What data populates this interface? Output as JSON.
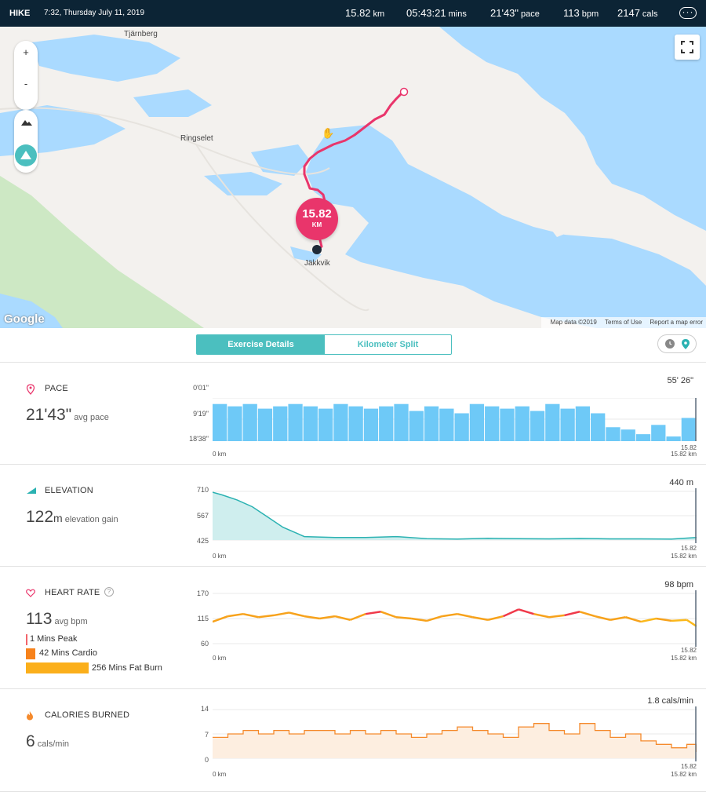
{
  "header": {
    "activity_type": "HIKE",
    "datetime": "7:32, Thursday July 11, 2019",
    "stats": [
      {
        "value": "15.82",
        "unit": "km"
      },
      {
        "value": "05:43:21",
        "unit": "mins"
      },
      {
        "value": "21'43\"",
        "unit": "pace"
      },
      {
        "value": "113",
        "unit": "bpm"
      },
      {
        "value": "2147",
        "unit": "cals"
      }
    ],
    "more_label": "···"
  },
  "map": {
    "zoom_in": "+",
    "zoom_out": "-",
    "places": {
      "p1": "Tjärnberg",
      "p2": "Ringselet",
      "p3": "Jäkkvik"
    },
    "distance_badge": {
      "value": "15.82",
      "unit": "KM"
    },
    "google_logo": "Google",
    "attribution": {
      "data": "Map data ©2019",
      "terms": "Terms of Use",
      "report": "Report a map error"
    },
    "colors": {
      "water": "#aadaff",
      "land": "#f3f1ee",
      "park": "#cde8c4",
      "route": "#e9356b"
    }
  },
  "tabs": {
    "exercise_details": "Exercise Details",
    "kilometer_split": "Kilometer Split"
  },
  "sections": {
    "pace": {
      "title": "PACE",
      "value": "21'43\"",
      "value_label": "avg pace",
      "y_ticks": [
        "0'01\"",
        "9'19\"",
        "18'38\""
      ],
      "max_label": "55' 26\"",
      "x_start": "0 km",
      "x_end": "15.82 km",
      "end_marker": "15.82",
      "color": "#6ec9f7"
    },
    "elevation": {
      "title": "ELEVATION",
      "value": "122",
      "value_unit": "m",
      "value_label": "elevation gain",
      "y_ticks": [
        "710",
        "567",
        "425"
      ],
      "max_label": "440 m",
      "x_start": "0 km",
      "x_end": "15.82 km",
      "end_marker": "15.82",
      "color": "#2bb2b2"
    },
    "heart_rate": {
      "title": "HEART RATE",
      "help": "?",
      "value": "113",
      "value_label": "avg bpm",
      "y_ticks": [
        "170",
        "115",
        "60"
      ],
      "max_label": "98 bpm",
      "x_start": "0 km",
      "x_end": "15.82 km",
      "end_marker": "15.82",
      "zones": [
        {
          "label": "1 Mins Peak",
          "color": "#f2646a",
          "minutes": 1
        },
        {
          "label": "42 Mins Cardio",
          "color": "#f7821b",
          "minutes": 42
        },
        {
          "label": "256 Mins Fat Burn",
          "color": "#fbaf1b",
          "minutes": 256
        }
      ]
    },
    "calories": {
      "title": "CALORIES BURNED",
      "value": "6",
      "value_label": "cals/min",
      "y_ticks": [
        "14",
        "7",
        "0"
      ],
      "max_label": "1.8 cals/min",
      "x_start": "0 km",
      "x_end": "15.82 km",
      "end_marker": "15.82",
      "color": "#f58a2c"
    }
  },
  "chart_data": [
    {
      "type": "bar",
      "title": "PACE",
      "x_range_km": [
        0,
        15.82
      ],
      "y_ticks": [
        "0'01\"",
        "9'19\"",
        "18'38\""
      ],
      "series": [
        {
          "values": [
            16,
            15,
            16,
            14,
            15,
            16,
            15,
            14,
            16,
            15,
            14,
            15,
            16,
            13,
            15,
            14,
            12,
            16,
            15,
            14,
            15,
            13,
            16,
            14,
            15,
            12,
            6,
            5,
            3,
            7,
            2,
            10
          ]
        }
      ]
    },
    {
      "type": "area",
      "title": "ELEVATION",
      "x": [
        0,
        0.3,
        0.8,
        1.3,
        1.8,
        2.3,
        3,
        4,
        5,
        6,
        7,
        8,
        9,
        10,
        11,
        12,
        13,
        14,
        15,
        15.82
      ],
      "series": [
        {
          "values": [
            705,
            690,
            660,
            620,
            560,
            500,
            445,
            440,
            440,
            445,
            433,
            431,
            435,
            433,
            432,
            434,
            432,
            432,
            431,
            440
          ]
        }
      ],
      "ylim": [
        425,
        710
      ]
    },
    {
      "type": "line",
      "title": "HEART RATE",
      "x": [
        0,
        0.5,
        1,
        1.5,
        2,
        2.5,
        3,
        3.5,
        4,
        4.5,
        5,
        5.5,
        6,
        6.5,
        7,
        7.5,
        8,
        8.5,
        9,
        9.5,
        10,
        10.5,
        11,
        11.5,
        12,
        12.5,
        13,
        13.5,
        14,
        14.5,
        15,
        15.5,
        15.82
      ],
      "series": [
        {
          "values": [
            108,
            120,
            125,
            118,
            122,
            128,
            120,
            115,
            120,
            112,
            125,
            130,
            118,
            115,
            110,
            120,
            125,
            118,
            112,
            120,
            135,
            125,
            118,
            122,
            130,
            120,
            112,
            118,
            108,
            115,
            110,
            112,
            98
          ]
        }
      ],
      "ylim": [
        60,
        170
      ]
    },
    {
      "type": "line",
      "title": "CALORIES BURNED",
      "x": [
        0,
        0.5,
        1,
        1.5,
        2,
        2.5,
        3,
        3.5,
        4,
        4.5,
        5,
        5.5,
        6,
        6.5,
        7,
        7.5,
        8,
        8.5,
        9,
        9.5,
        10,
        10.5,
        11,
        11.5,
        12,
        12.5,
        13,
        13.5,
        14,
        14.5,
        15,
        15.5,
        15.82
      ],
      "series": [
        {
          "values": [
            6,
            7,
            8,
            7,
            8,
            7,
            8,
            8,
            7,
            8,
            7,
            8,
            7,
            6,
            7,
            8,
            9,
            8,
            7,
            6,
            9,
            10,
            8,
            7,
            10,
            8,
            6,
            7,
            5,
            4,
            3,
            4,
            1.8
          ]
        }
      ],
      "ylim": [
        0,
        14
      ]
    }
  ]
}
